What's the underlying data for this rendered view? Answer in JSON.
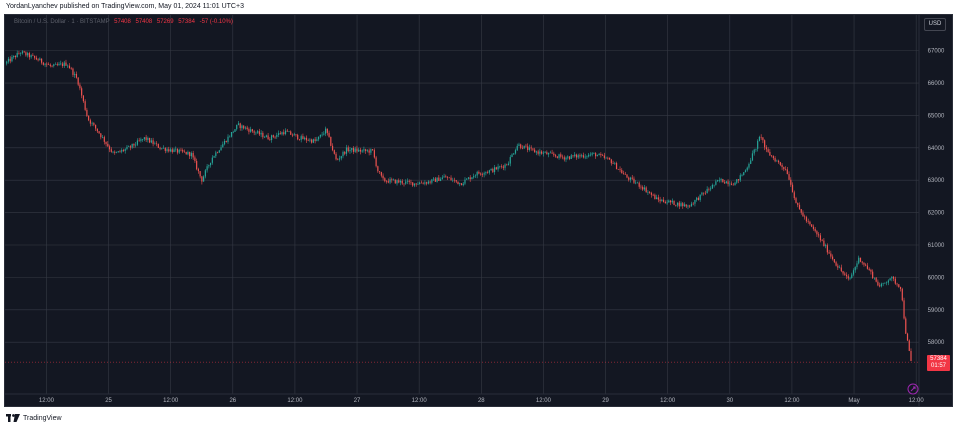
{
  "header": {
    "publisher_text": "YordanLyanchev published on TradingView.com, May 01, 2024 11:01 UTC+3"
  },
  "legend": {
    "symbol": "Bitcoin / U.S. Dollar · 1 · BITSTAMP",
    "open": "57408",
    "high": "57408",
    "low": "57269",
    "close": "57384",
    "change": "-57 (-0.10%)"
  },
  "currency_button": "USD",
  "last_price": {
    "value": "57384",
    "countdown": "01:57"
  },
  "footer": {
    "brand": "TradingView"
  },
  "colors": {
    "background": "#131722",
    "grid": "#363a45",
    "up": "#26a69a",
    "down": "#ef5350",
    "axis_text": "#b2b5be",
    "price_line": "#f23645"
  },
  "chart_data": {
    "type": "candlestick",
    "y_axis": {
      "ticks": [
        "67000",
        "66000",
        "65000",
        "64000",
        "63000",
        "62000",
        "61000",
        "60000",
        "59000",
        "58000"
      ],
      "range": [
        56400,
        68100
      ],
      "position": "right"
    },
    "x_axis": {
      "ticks": [
        "12:00",
        "25",
        "12:00",
        "26",
        "12:00",
        "27",
        "12:00",
        "28",
        "12:00",
        "29",
        "12:00",
        "30",
        "12:00",
        "May",
        "12:00"
      ],
      "range": [
        "Apr 24 04:00",
        "May 1 12:00"
      ]
    },
    "grid": true,
    "series": [
      {
        "price_path": [
          [
            "2024-04-24 04:00",
            66600
          ],
          [
            "2024-04-24 07:00",
            66950
          ],
          [
            "2024-04-24 10:00",
            66750
          ],
          [
            "2024-04-24 13:00",
            66500
          ],
          [
            "2024-04-24 16:00",
            66600
          ],
          [
            "2024-04-24 18:00",
            66100
          ],
          [
            "2024-04-24 20:00",
            64900
          ],
          [
            "2024-04-24 22:00",
            64500
          ],
          [
            "2024-04-25 01:00",
            63800
          ],
          [
            "2024-04-25 04:00",
            64000
          ],
          [
            "2024-04-25 07:00",
            64300
          ],
          [
            "2024-04-25 10:00",
            64000
          ],
          [
            "2024-04-25 13:00",
            63900
          ],
          [
            "2024-04-25 16:00",
            63800
          ],
          [
            "2024-04-25 18:00",
            63000
          ],
          [
            "2024-04-25 20:00",
            63700
          ],
          [
            "2024-04-25 23:00",
            64300
          ],
          [
            "2024-04-26 01:00",
            64700
          ],
          [
            "2024-04-26 04:00",
            64500
          ],
          [
            "2024-04-26 07:00",
            64300
          ],
          [
            "2024-04-26 10:00",
            64500
          ],
          [
            "2024-04-26 13:00",
            64300
          ],
          [
            "2024-04-26 16:00",
            64200
          ],
          [
            "2024-04-26 18:00",
            64550
          ],
          [
            "2024-04-26 20:00",
            63600
          ],
          [
            "2024-04-26 22:00",
            63950
          ],
          [
            "2024-04-27 01:00",
            63900
          ],
          [
            "2024-04-27 03:00",
            63900
          ],
          [
            "2024-04-27 04:00",
            63300
          ],
          [
            "2024-04-27 05:00",
            63000
          ],
          [
            "2024-04-27 08:00",
            62950
          ],
          [
            "2024-04-27 11:00",
            62900
          ],
          [
            "2024-04-27 14:00",
            62950
          ],
          [
            "2024-04-27 17:00",
            63100
          ],
          [
            "2024-04-27 20:00",
            62900
          ],
          [
            "2024-04-27 23:00",
            63200
          ],
          [
            "2024-04-28 02:00",
            63300
          ],
          [
            "2024-04-28 05:00",
            63500
          ],
          [
            "2024-04-28 07:00",
            64100
          ],
          [
            "2024-04-28 10:00",
            63900
          ],
          [
            "2024-04-28 13:00",
            63800
          ],
          [
            "2024-04-28 16:00",
            63700
          ],
          [
            "2024-04-28 19:00",
            63750
          ],
          [
            "2024-04-28 22:00",
            63800
          ],
          [
            "2024-04-29 01:00",
            63600
          ],
          [
            "2024-04-29 04:00",
            63100
          ],
          [
            "2024-04-29 07:00",
            62800
          ],
          [
            "2024-04-29 10:00",
            62400
          ],
          [
            "2024-04-29 13:00",
            62300
          ],
          [
            "2024-04-29 16:00",
            62200
          ],
          [
            "2024-04-29 19:00",
            62600
          ],
          [
            "2024-04-29 22:00",
            63000
          ],
          [
            "2024-04-30 01:00",
            62900
          ],
          [
            "2024-04-30 03:00",
            63300
          ],
          [
            "2024-04-30 05:00",
            64000
          ],
          [
            "2024-04-30 06:00",
            64400
          ],
          [
            "2024-04-30 07:00",
            63900
          ],
          [
            "2024-04-30 09:00",
            63600
          ],
          [
            "2024-04-30 11:00",
            63300
          ],
          [
            "2024-04-30 13:00",
            62200
          ],
          [
            "2024-04-30 15:00",
            61700
          ],
          [
            "2024-04-30 17:00",
            61300
          ],
          [
            "2024-04-30 19:00",
            60800
          ],
          [
            "2024-04-30 21:00",
            60300
          ],
          [
            "2024-04-30 23:00",
            59900
          ],
          [
            "2024-05-01 01:00",
            60600
          ],
          [
            "2024-05-01 03:00",
            60200
          ],
          [
            "2024-05-01 05:00",
            59700
          ],
          [
            "2024-05-01 07:00",
            60000
          ],
          [
            "2024-05-01 09:00",
            59700
          ],
          [
            "2024-05-01 10:00",
            58300
          ],
          [
            "2024-05-01 11:00",
            57384
          ]
        ]
      }
    ]
  }
}
